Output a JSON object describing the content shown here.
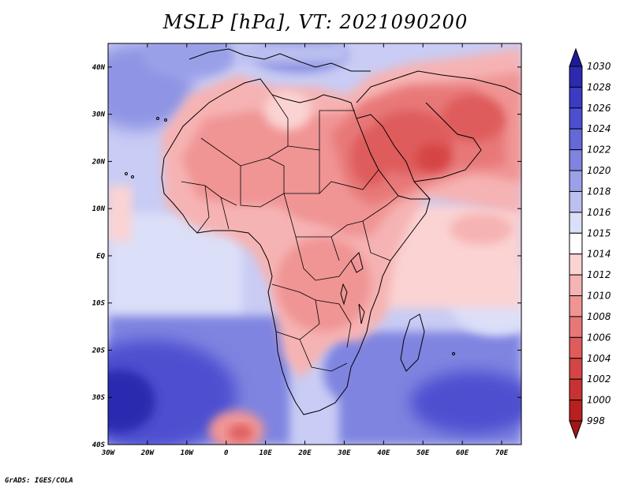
{
  "title": "MSLP [hPa], VT: 2021090200",
  "credit": "GrADS: IGES/COLA",
  "map": {
    "lon_labels": [
      "30W",
      "20W",
      "10W",
      "0",
      "10E",
      "20E",
      "30E",
      "40E",
      "50E",
      "60E",
      "70E"
    ],
    "lat_labels": [
      "40N",
      "30N",
      "20N",
      "10N",
      "EQ",
      "10S",
      "20S",
      "30S",
      "40S"
    ],
    "lon_range": [
      -30,
      75
    ],
    "lat_range": [
      -40,
      45
    ]
  },
  "colorbar": {
    "levels": [
      "1030",
      "1028",
      "1026",
      "1024",
      "1022",
      "1020",
      "1018",
      "1016",
      "1015",
      "1014",
      "1012",
      "1010",
      "1008",
      "1006",
      "1004",
      "1002",
      "1000",
      "998"
    ],
    "colors": [
      "#1e1a9a",
      "#2c2ab0",
      "#3b3bc4",
      "#4d4fd0",
      "#6468d8",
      "#7f84e0",
      "#9ba0e8",
      "#bcc0f0",
      "#dcdff8",
      "#ffffff",
      "#fbd3d3",
      "#f6b3b3",
      "#f09494",
      "#e87878",
      "#df5c5c",
      "#d54545",
      "#c93232",
      "#b82020",
      "#a11616"
    ]
  }
}
